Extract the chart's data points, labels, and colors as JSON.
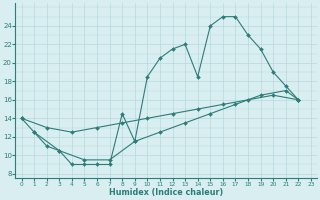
{
  "line1_x": [
    0,
    1,
    2,
    3,
    4,
    5,
    6,
    7,
    8,
    9,
    10,
    11,
    12,
    13,
    14,
    15,
    16,
    17,
    18,
    19,
    20,
    21,
    22
  ],
  "line1_y": [
    14.0,
    12.5,
    11.0,
    10.5,
    9.0,
    9.0,
    9.0,
    9.0,
    14.5,
    11.5,
    18.5,
    20.5,
    21.5,
    22.0,
    18.5,
    24.0,
    25.0,
    25.0,
    23.0,
    21.5,
    19.0,
    17.5,
    16.0
  ],
  "line2_x": [
    0,
    2,
    4,
    6,
    8,
    10,
    12,
    14,
    16,
    18,
    20,
    22
  ],
  "line2_y": [
    14.0,
    13.0,
    12.5,
    13.0,
    13.5,
    14.0,
    14.5,
    15.0,
    15.5,
    16.0,
    16.5,
    16.0
  ],
  "line3_x": [
    1,
    3,
    5,
    7,
    9,
    11,
    13,
    15,
    17,
    19,
    21,
    22
  ],
  "line3_y": [
    12.5,
    10.5,
    9.5,
    9.5,
    11.5,
    12.5,
    13.5,
    14.5,
    15.5,
    16.5,
    17.0,
    16.0
  ],
  "color": "#2d7d78",
  "bg_color": "#d8eef0",
  "grid_color": "#b8d8dc",
  "xlabel": "Humidex (Indice chaleur)",
  "xlim": [
    -0.5,
    23.5
  ],
  "ylim": [
    7.5,
    26.5
  ],
  "xticks": [
    0,
    1,
    2,
    3,
    4,
    5,
    6,
    7,
    8,
    9,
    10,
    11,
    12,
    13,
    14,
    15,
    16,
    17,
    18,
    19,
    20,
    21,
    22,
    23
  ],
  "yticks": [
    8,
    10,
    12,
    14,
    16,
    18,
    20,
    22,
    24
  ]
}
